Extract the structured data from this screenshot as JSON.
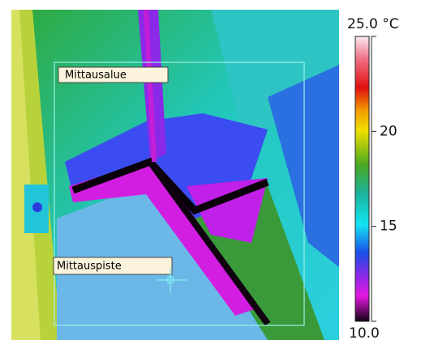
{
  "image": {
    "area_label": "Mittausalue",
    "spot_label": "Mittauspiste"
  },
  "scale": {
    "range": [
      10,
      25
    ],
    "ticks": [
      {
        "value": 25,
        "label": "25.0 °C"
      },
      20,
      15,
      {
        "value": 10,
        "label": "10.0"
      }
    ]
  }
}
